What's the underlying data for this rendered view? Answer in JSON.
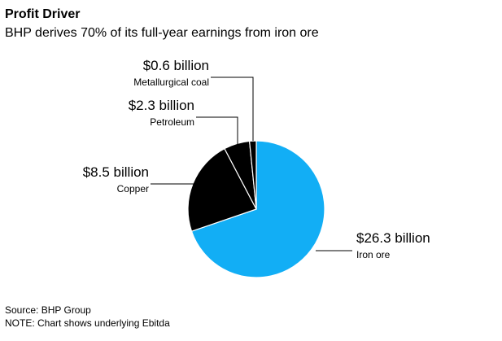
{
  "chart_data": {
    "type": "pie",
    "title": "Profit Driver",
    "subtitle": "BHP derives 70% of its full-year earnings from iron ore",
    "categories": [
      "Iron ore",
      "Copper",
      "Petroleum",
      "Metallurgical coal"
    ],
    "values": [
      26.3,
      8.5,
      2.3,
      0.6
    ],
    "value_labels": [
      "$26.3 billion",
      "$8.5 billion",
      "$2.3 billion",
      "$0.6 billion"
    ],
    "colors": [
      "#12aef5",
      "#000000",
      "#000000",
      "#000000"
    ],
    "source": "Source: BHP Group",
    "note": "NOTE: Chart shows underlying Ebitda"
  }
}
